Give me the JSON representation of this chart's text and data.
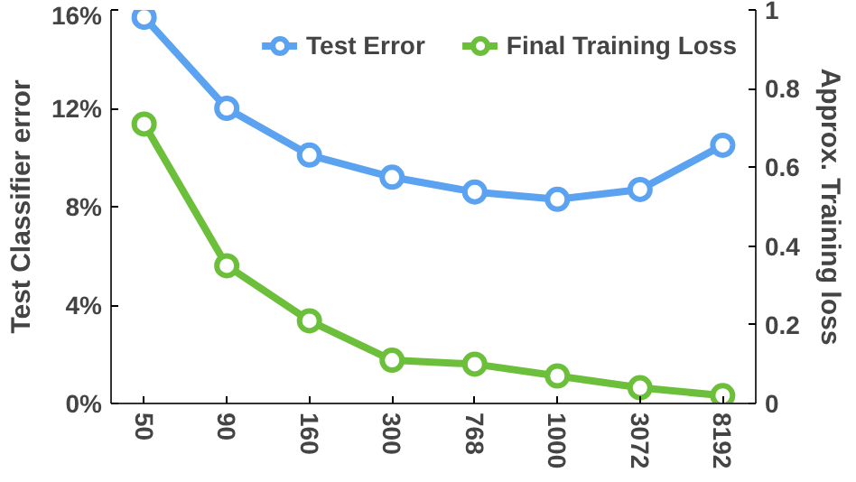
{
  "chart_data": {
    "type": "line",
    "categories": [
      "50",
      "90",
      "160",
      "300",
      "768",
      "1000",
      "3072",
      "8192"
    ],
    "ylabel": "Test Classifier error",
    "y2label": "Approx. Training loss",
    "ylim": [
      0,
      16
    ],
    "yticks": [
      {
        "value": 0,
        "label": "0%"
      },
      {
        "value": 4,
        "label": "4%"
      },
      {
        "value": 8,
        "label": "8%"
      },
      {
        "value": 12,
        "label": "12%"
      },
      {
        "value": 16,
        "label": "16%"
      }
    ],
    "y2lim": [
      0,
      1
    ],
    "y2ticks": [
      0,
      0.2,
      0.4,
      0.6,
      0.8,
      1
    ],
    "series": [
      {
        "name": "Test Error",
        "color": "#5ba3f0",
        "values": [
          15.7,
          12.0,
          10.1,
          9.2,
          8.6,
          8.3,
          8.7,
          10.5
        ]
      },
      {
        "name": "Final Training Loss",
        "color": "#6cbf3a",
        "axis": "y2",
        "values": [
          0.71,
          0.35,
          0.21,
          0.11,
          0.1,
          0.07,
          0.04,
          0.02
        ]
      }
    ],
    "marker": "circle",
    "line_style": "solid",
    "legend": "top right",
    "grid": false
  }
}
